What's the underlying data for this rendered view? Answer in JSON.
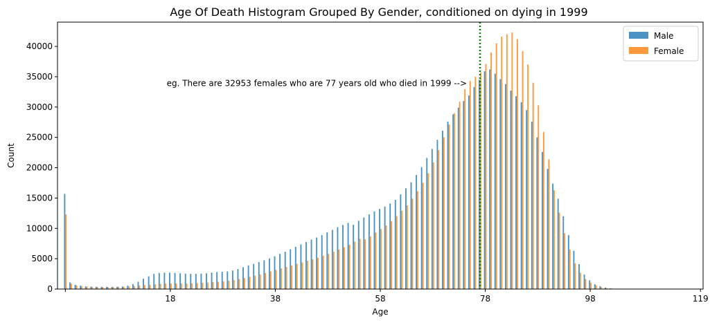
{
  "chart_data": {
    "type": "bar",
    "title": "Age Of Death Histogram Grouped By Gender, conditioned on dying in 1999",
    "xlabel": "Age",
    "ylabel": "Count",
    "xlim": [
      -1.5,
      121.5
    ],
    "ylim": [
      0,
      44000
    ],
    "x_ticks": [
      {
        "value": 0,
        "label": ""
      },
      {
        "value": 20,
        "label": "18"
      },
      {
        "value": 40,
        "label": "38"
      },
      {
        "value": 60,
        "label": "58"
      },
      {
        "value": 80,
        "label": "78"
      },
      {
        "value": 100,
        "label": "98"
      },
      {
        "value": 121,
        "label": "119"
      }
    ],
    "y_ticks": [
      0,
      5000,
      10000,
      15000,
      20000,
      25000,
      30000,
      35000,
      40000
    ],
    "legend_position": "top-right",
    "grid": false,
    "series": [
      {
        "name": "Male",
        "color": "#1f77b4",
        "values": [
          15700,
          1100,
          700,
          550,
          450,
          400,
          380,
          360,
          360,
          360,
          380,
          430,
          560,
          820,
          1200,
          1700,
          2100,
          2500,
          2650,
          2700,
          2700,
          2650,
          2600,
          2550,
          2500,
          2500,
          2550,
          2600,
          2700,
          2800,
          2850,
          2900,
          3050,
          3300,
          3600,
          3900,
          4150,
          4450,
          4750,
          5050,
          5400,
          5800,
          6150,
          6550,
          6950,
          7350,
          7750,
          8150,
          8500,
          8900,
          9350,
          9750,
          10200,
          10550,
          10900,
          10600,
          11250,
          11800,
          12300,
          12800,
          13200,
          13600,
          14100,
          14700,
          15600,
          16600,
          17600,
          18800,
          20100,
          21600,
          23100,
          24600,
          26100,
          27600,
          28800,
          29900,
          31000,
          31900,
          33300,
          34500,
          35900,
          36200,
          35500,
          34600,
          33800,
          32700,
          31800,
          30800,
          29500,
          27600,
          25000,
          22600,
          19800,
          17400,
          14900,
          12000,
          8900,
          6300,
          4100,
          2400,
          1450,
          800,
          480,
          260,
          130,
          60,
          25,
          10,
          4,
          2,
          1,
          0,
          0,
          0,
          0,
          0,
          0,
          0,
          0,
          0,
          0
        ]
      },
      {
        "name": "Female",
        "color": "#ff7f0e",
        "values": [
          12300,
          900,
          600,
          480,
          400,
          360,
          340,
          330,
          340,
          350,
          360,
          380,
          430,
          500,
          570,
          650,
          720,
          790,
          850,
          900,
          920,
          920,
          920,
          900,
          920,
          960,
          1020,
          1080,
          1150,
          1200,
          1280,
          1380,
          1500,
          1650,
          1820,
          2000,
          2200,
          2420,
          2650,
          2900,
          3150,
          3400,
          3650,
          3900,
          4150,
          4400,
          4650,
          4900,
          5150,
          5500,
          5800,
          6150,
          6500,
          6900,
          7300,
          7800,
          8300,
          8200,
          8700,
          9300,
          9900,
          10500,
          11200,
          12000,
          12900,
          13800,
          14900,
          16100,
          17500,
          19100,
          20900,
          22900,
          25000,
          27100,
          29000,
          30900,
          32953,
          34300,
          35000,
          35700,
          37100,
          39000,
          40500,
          41600,
          42000,
          42300,
          41200,
          39200,
          37000,
          34000,
          30300,
          25900,
          21400,
          16300,
          12600,
          9200,
          6500,
          4250,
          2700,
          1650,
          1050,
          620,
          340,
          170,
          80,
          35,
          15,
          6,
          2,
          1,
          0,
          0,
          0,
          0,
          0,
          0,
          0,
          0,
          0,
          0,
          0
        ]
      }
    ],
    "annotations": [
      {
        "text": "eg. There are 32953 females who are 77 years old who died in 1999 -->",
        "x": 76.5,
        "y": 33000
      }
    ],
    "vlines": [
      {
        "x": 79,
        "style": "dotted",
        "color": "#007f00"
      }
    ]
  }
}
